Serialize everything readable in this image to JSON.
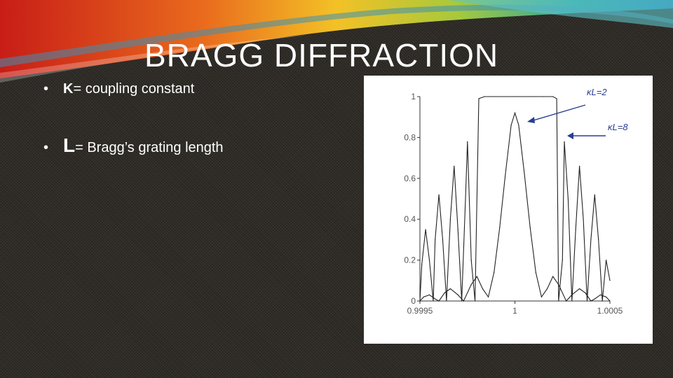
{
  "slide": {
    "title": "BRAGG DIFFRACTION",
    "bullets": [
      {
        "marker": "•",
        "symbol": "K",
        "text": " = coupling constant"
      },
      {
        "marker": "•",
        "symbol": "L",
        "text": " = Bragg’s grating length"
      }
    ]
  },
  "colors": {
    "background": "#2e2b26",
    "ribbon": [
      "#c81d17",
      "#e96a1d",
      "#f3c126",
      "#a7c93b",
      "#2fa7a0",
      "#1f7fb8"
    ],
    "text": "#ffffff"
  },
  "chart_data": {
    "type": "line",
    "xlabel": "",
    "ylabel": "",
    "xlim": [
      0.9995,
      1.0005
    ],
    "ylim": [
      0,
      1
    ],
    "x_ticks": [
      "0.9995",
      "1",
      "1.0005"
    ],
    "y_ticks": [
      "0",
      "0.2",
      "0.4",
      "0.6",
      "0.8",
      "1"
    ],
    "grid": false,
    "annotations": [
      "κL=2",
      "κL=8"
    ],
    "series": [
      {
        "name": "κL=2",
        "x": [
          0.9995,
          0.99952,
          0.99955,
          0.99958,
          0.9996,
          0.99963,
          0.99966,
          0.9997,
          0.99973,
          0.99977,
          0.9998,
          0.99983,
          0.99986,
          0.99989,
          0.99992,
          0.99995,
          0.99998,
          1.0,
          1.00002,
          1.00005,
          1.00008,
          1.00011,
          1.00014,
          1.00017,
          1.0002,
          1.00023,
          1.00027,
          1.0003,
          1.00034,
          1.00037,
          1.0004,
          1.00042,
          1.00045,
          1.00048,
          1.0005
        ],
        "y": [
          0.0,
          0.02,
          0.03,
          0.01,
          0.0,
          0.04,
          0.06,
          0.03,
          0.0,
          0.08,
          0.12,
          0.06,
          0.02,
          0.14,
          0.36,
          0.62,
          0.86,
          0.92,
          0.86,
          0.62,
          0.36,
          0.14,
          0.02,
          0.06,
          0.12,
          0.08,
          0.0,
          0.03,
          0.06,
          0.04,
          0.0,
          0.01,
          0.03,
          0.02,
          0.0
        ]
      },
      {
        "name": "κL=8",
        "x": [
          0.9995,
          0.99951,
          0.99953,
          0.99955,
          0.99957,
          0.99958,
          0.9996,
          0.99962,
          0.99964,
          0.99966,
          0.99968,
          0.9997,
          0.99972,
          0.99974,
          0.99975,
          0.99977,
          0.99979,
          0.99981,
          0.99984,
          0.99988,
          0.9999,
          1.0,
          1.0001,
          1.00015,
          1.0002,
          1.00022,
          1.00023,
          1.00025,
          1.00026,
          1.00028,
          1.0003,
          1.00032,
          1.00034,
          1.00036,
          1.00038,
          1.0004,
          1.00042,
          1.00044,
          1.00046,
          1.00048,
          1.0005
        ],
        "y": [
          0.0,
          0.18,
          0.35,
          0.2,
          0.0,
          0.3,
          0.52,
          0.3,
          0.0,
          0.4,
          0.66,
          0.35,
          0.0,
          0.5,
          0.78,
          0.2,
          0.0,
          0.99,
          1.0,
          1.0,
          1.0,
          1.0,
          1.0,
          1.0,
          1.0,
          0.99,
          0.0,
          0.2,
          0.78,
          0.5,
          0.0,
          0.35,
          0.66,
          0.4,
          0.0,
          0.3,
          0.52,
          0.3,
          0.0,
          0.2,
          0.1
        ]
      }
    ]
  }
}
